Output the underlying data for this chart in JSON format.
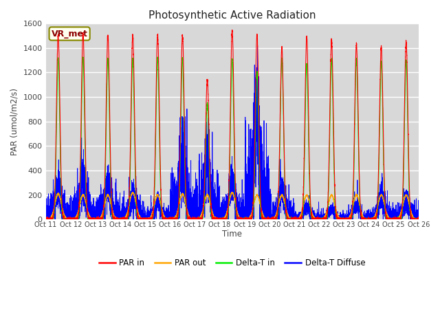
{
  "title": "Photosynthetic Active Radiation",
  "ylabel": "PAR (umol/m2/s)",
  "xlabel": "Time",
  "legend_label": "VR_met",
  "plot_bg_color": "#d8d8d8",
  "fig_bg_color": "#ffffff",
  "series_colors": {
    "PAR_in": "#ff0000",
    "PAR_out": "#ffa500",
    "Delta_T_in": "#00ee00",
    "Delta_T_Diffuse": "#0000ff"
  },
  "xlim": [
    0,
    15
  ],
  "ylim": [
    0,
    1600
  ],
  "yticks": [
    0,
    200,
    400,
    600,
    800,
    1000,
    1200,
    1400,
    1600
  ],
  "xtick_labels": [
    "Oct 11",
    "Oct 12",
    "Oct 13",
    "Oct 14",
    "Oct 15",
    "Oct 16",
    "Oct 17",
    "Oct 18",
    "Oct 19",
    "Oct 20",
    "Oct 21",
    "Oct 22",
    "Oct 23",
    "Oct 24",
    "Oct 25",
    "Oct 26"
  ],
  "legend_entries": [
    "PAR in",
    "PAR out",
    "Delta-T in",
    "Delta-T Diffuse"
  ],
  "legend_colors": [
    "#ff0000",
    "#ffa500",
    "#00ee00",
    "#0000ff"
  ],
  "par_in_peaks": [
    1500,
    1520,
    1500,
    1500,
    1510,
    1500,
    1140,
    1540,
    1510,
    1400,
    1490,
    1460,
    1430,
    1410,
    1450
  ],
  "par_out_peaks": [
    210,
    200,
    200,
    220,
    200,
    210,
    200,
    220,
    200,
    200,
    200,
    200,
    200,
    200,
    200
  ],
  "dt_in_peaks": [
    1310,
    1320,
    1310,
    1310,
    1320,
    1310,
    950,
    1310,
    1200,
    1310,
    1270,
    1300,
    1310,
    1280,
    1295
  ],
  "dt_diff_peaks": [
    260,
    340,
    300,
    220,
    140,
    530,
    470,
    300,
    820,
    230,
    100,
    85,
    110,
    190,
    155
  ]
}
